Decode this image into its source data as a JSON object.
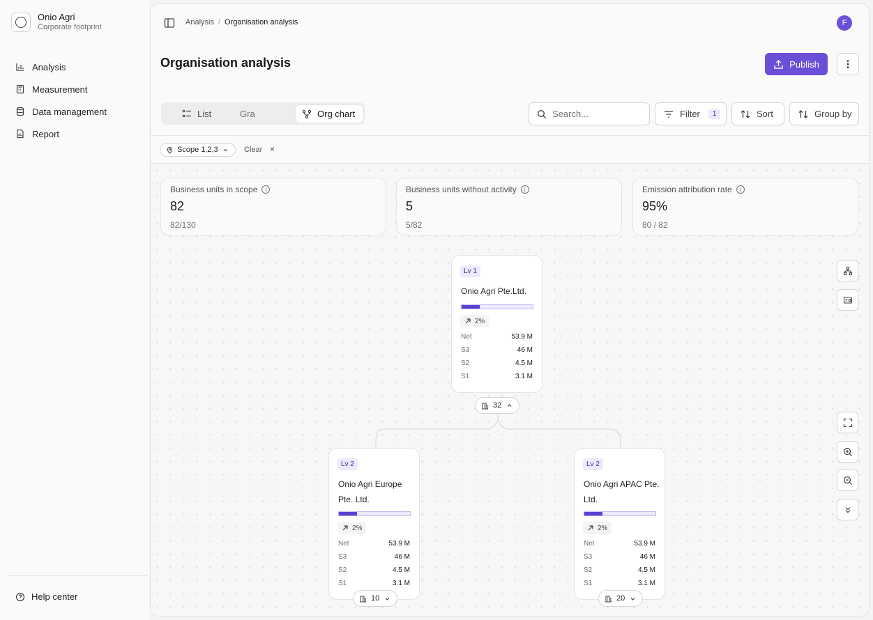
{
  "org": {
    "name": "Onio Agri",
    "subtitle": "Corporate footprint"
  },
  "sidebar": {
    "items": [
      {
        "label": "Analysis",
        "icon": "bar-chart-icon"
      },
      {
        "label": "Measurement",
        "icon": "calculator-icon"
      },
      {
        "label": "Data management",
        "icon": "database-icon"
      },
      {
        "label": "Report",
        "icon": "report-icon"
      }
    ],
    "help_label": "Help center"
  },
  "header": {
    "breadcrumb": [
      "Analysis",
      "Organisation analysis"
    ],
    "avatar": "F",
    "title": "Organisation analysis",
    "publish_label": "Publish"
  },
  "view_tabs": [
    "List",
    "Gra",
    "Org chart"
  ],
  "toolbar": {
    "search_placeholder": "Search...",
    "filter_label": "Filter",
    "filter_count": "1",
    "sort_label": "Sort",
    "group_label": "Group by"
  },
  "filters": {
    "chip": "Scope 1,2,3",
    "clear": "Clear",
    "clear_x": "×"
  },
  "stats": [
    {
      "label": "Business units in scope",
      "value": "82",
      "sub": "82/130"
    },
    {
      "label": "Business units without activity",
      "value": "5",
      "sub": "5/82"
    },
    {
      "label": "Emission attribution rate",
      "value": "95%",
      "sub": "80 / 82"
    }
  ],
  "nodes": [
    {
      "level": "Lv 1",
      "name": "Onio Agri Pte.Ltd.",
      "progress": 0.25,
      "trend": "2%",
      "metrics": [
        [
          "Net",
          "53.9 M"
        ],
        [
          "S3",
          "46 M"
        ],
        [
          "S2",
          "4.5 M"
        ],
        [
          "S1",
          "3.1 M"
        ]
      ],
      "children_count": "32"
    },
    {
      "level": "Lv 2",
      "name": "Onio Agri Europe Pte. Ltd.",
      "progress": 0.25,
      "trend": "2%",
      "metrics": [
        [
          "Net",
          "53.9 M"
        ],
        [
          "S3",
          "46 M"
        ],
        [
          "S2",
          "4.5 M"
        ],
        [
          "S1",
          "3.1 M"
        ]
      ],
      "children_count": "10"
    },
    {
      "level": "Lv 2",
      "name": "Onio Agri APAC Pte. Ltd.",
      "progress": 0.25,
      "trend": "2%",
      "metrics": [
        [
          "Net",
          "53.9 M"
        ],
        [
          "S3",
          "46 M"
        ],
        [
          "S2",
          "4.5 M"
        ],
        [
          "S1",
          "3.1 M"
        ]
      ],
      "children_count": "20"
    }
  ],
  "colors": {
    "accent": "#6b4fd8",
    "accent_light": "#ede9fe"
  }
}
